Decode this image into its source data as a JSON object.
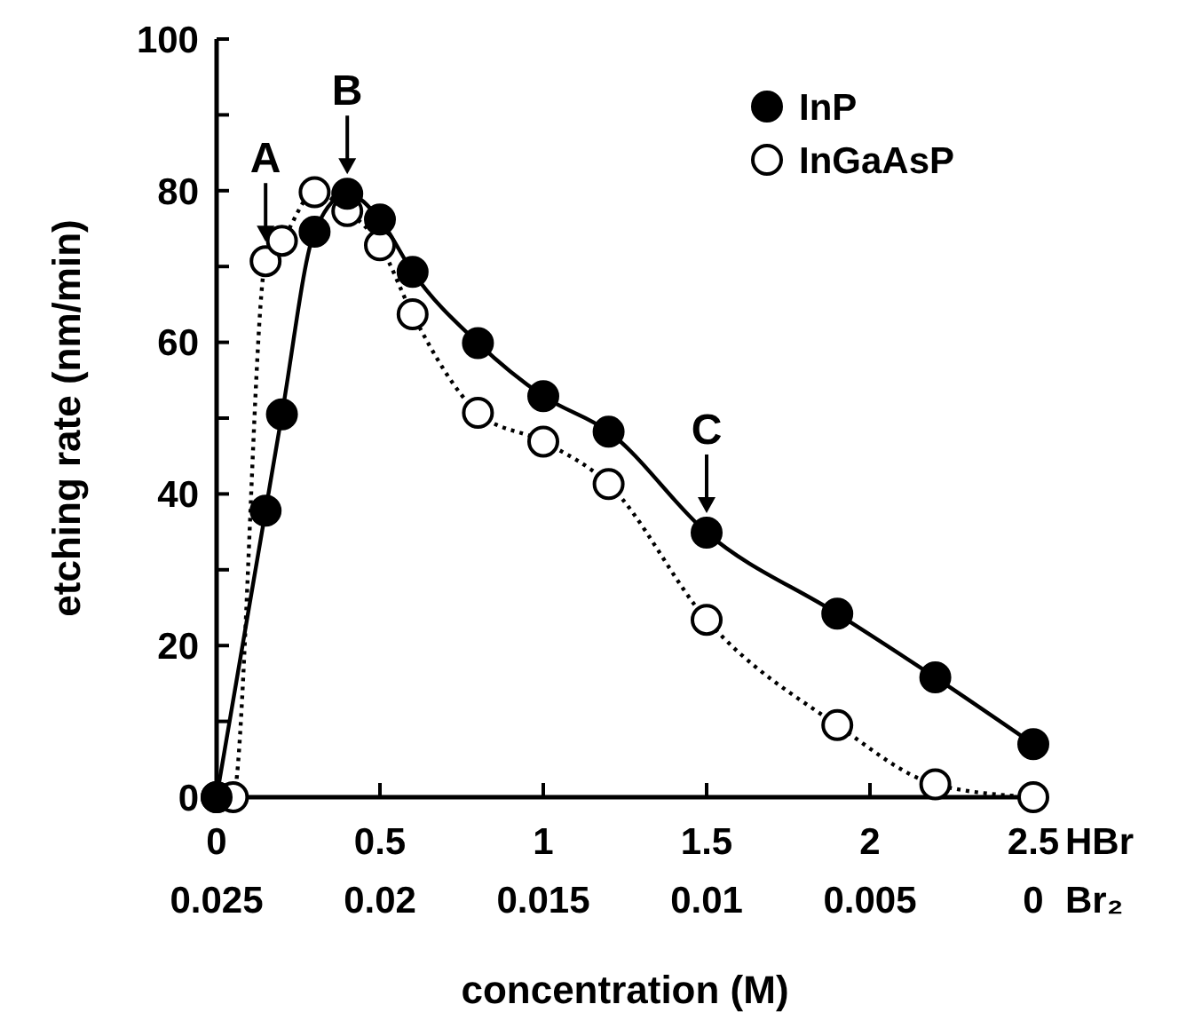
{
  "chart_data": {
    "type": "line",
    "xlabel": "concentration (M)",
    "ylabel": "etching rate (nm/min)",
    "x2label": "Br₂",
    "xlim": [
      0,
      2.5
    ],
    "xticks": [
      0,
      0.5,
      1,
      1.5,
      2,
      2.5
    ],
    "x2lim": [
      0.025,
      0
    ],
    "x2ticks": [
      0.025,
      0.02,
      0.015,
      0.01,
      0.005,
      0
    ],
    "ylim": [
      0,
      100
    ],
    "yticks": [
      0,
      {
        "value": 10,
        "label": null
      },
      20,
      {
        "value": 30,
        "label": null
      },
      40,
      {
        "value": 50,
        "label": null
      },
      60,
      {
        "value": 70,
        "label": null
      },
      80,
      {
        "value": 90,
        "label": null
      },
      100
    ],
    "grid": false,
    "legend": "top right",
    "annotations": [
      "HBr",
      {
        "text": "A",
        "x": 0.15,
        "y": 70.7
      },
      {
        "text": "B",
        "x": 0.4,
        "y": 79.6
      },
      {
        "text": "C",
        "x": 1.5,
        "y": 34.9
      }
    ],
    "series": [
      {
        "name": "InGaAsP",
        "color": "#000000",
        "marker": "circle",
        "line_style": "dotted",
        "x": [
          0,
          0.05,
          0.15,
          0.2,
          0.3,
          0.4,
          0.5,
          0.6,
          0.8,
          1.0,
          1.2,
          1.5,
          1.9,
          2.2,
          2.5
        ],
        "values": [
          0,
          0,
          70.7,
          73.4,
          79.8,
          77.3,
          72.8,
          63.7,
          50.7,
          46.9,
          41.3,
          23.4,
          9.5,
          1.7,
          0
        ]
      },
      {
        "name": "InP",
        "color": "#000000",
        "marker": "circle",
        "line_style": "solid",
        "x": [
          0,
          0.15,
          0.2,
          0.3,
          0.4,
          0.5,
          0.6,
          0.8,
          1.0,
          1.2,
          1.5,
          1.9,
          2.2,
          2.5
        ],
        "values": [
          0,
          37.8,
          50.5,
          74.6,
          79.6,
          76.2,
          69.3,
          59.9,
          52.9,
          48.2,
          34.9,
          24.2,
          15.8,
          7
        ]
      }
    ]
  }
}
